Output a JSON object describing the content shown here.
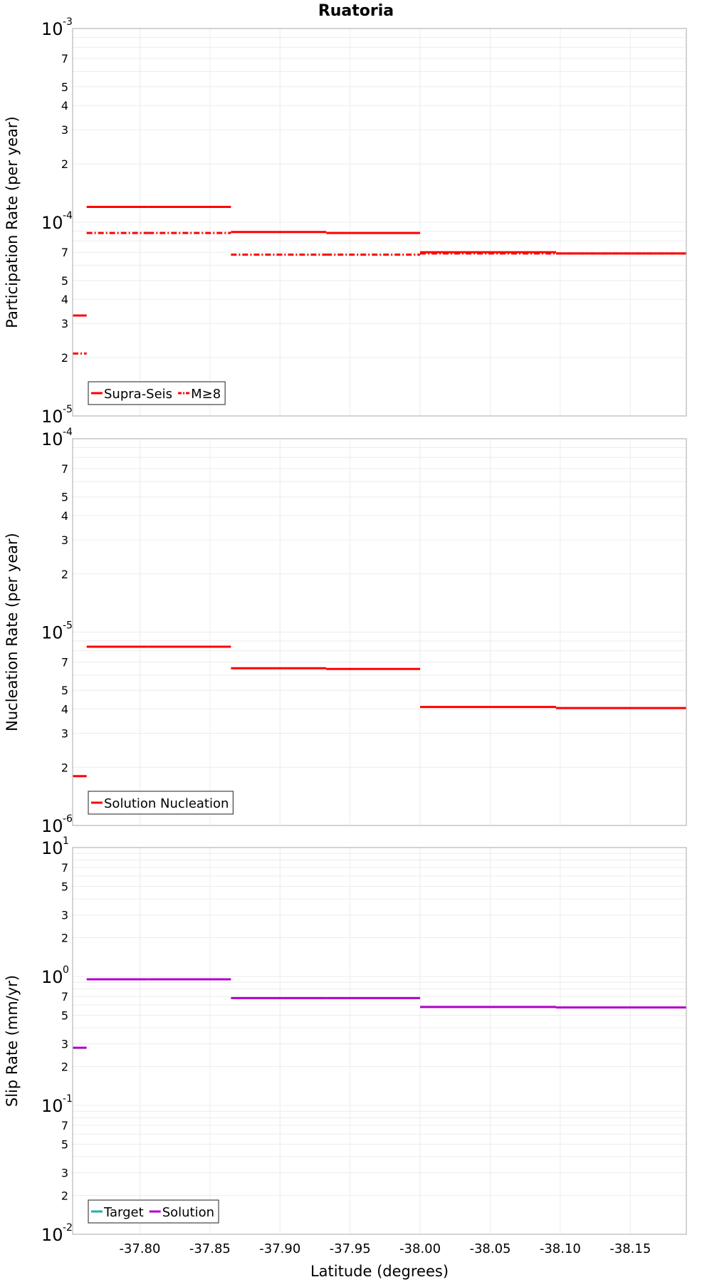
{
  "title": "Ruatoria",
  "xlabel": "Latitude (degrees)",
  "colors": {
    "supra": "#ff0000",
    "solution": "#b000c8",
    "target": "#20b0b0"
  },
  "chart_data": [
    {
      "type": "line",
      "id": "participation",
      "ylabel": "Participation Rate (per year)",
      "yscale": "log",
      "ylim_exp": [
        -5,
        -3
      ],
      "xlim": [
        -37.752,
        -38.19
      ],
      "xticks": [
        -37.8,
        -37.85,
        -37.9,
        -37.95,
        -38.0,
        -38.05,
        -38.1,
        -38.15
      ],
      "xtick_labels": [
        "-37.80",
        "-37.85",
        "-37.90",
        "-37.95",
        "-38.00",
        "-38.05",
        "-38.10",
        "-38.15"
      ],
      "legend": [
        "Supra-Seis",
        "M≥8"
      ],
      "series": [
        {
          "name": "Supra-Seis",
          "style": "solid",
          "color": "#ff0000",
          "segments": [
            {
              "x": [
                -37.752,
                -37.762
              ],
              "y": 3.3e-05
            },
            {
              "x": [
                -37.762,
                -37.806
              ],
              "y": 0.00012
            },
            {
              "x": [
                -37.806,
                -37.865
              ],
              "y": 0.00012
            },
            {
              "x": [
                -37.865,
                -37.933
              ],
              "y": 8.9e-05
            },
            {
              "x": [
                -37.933,
                -38.0
              ],
              "y": 8.8e-05
            },
            {
              "x": [
                -38.0,
                -38.097
              ],
              "y": 7e-05
            },
            {
              "x": [
                -38.097,
                -38.19
              ],
              "y": 6.9e-05
            }
          ]
        },
        {
          "name": "M≥8",
          "style": "dashdot",
          "color": "#ff0000",
          "segments": [
            {
              "x": [
                -37.752,
                -37.762
              ],
              "y": 2.1e-05
            },
            {
              "x": [
                -37.762,
                -37.806
              ],
              "y": 8.8e-05
            },
            {
              "x": [
                -37.806,
                -37.865
              ],
              "y": 8.8e-05
            },
            {
              "x": [
                -37.865,
                -37.933
              ],
              "y": 6.8e-05
            },
            {
              "x": [
                -37.933,
                -38.0
              ],
              "y": 6.8e-05
            },
            {
              "x": [
                -38.0,
                -38.097
              ],
              "y": 6.9e-05
            },
            {
              "x": [
                -38.097,
                -38.19
              ],
              "y": 6.9e-05
            }
          ]
        }
      ]
    },
    {
      "type": "line",
      "id": "nucleation",
      "ylabel": "Nucleation Rate (per year)",
      "yscale": "log",
      "ylim_exp": [
        -6,
        -4
      ],
      "xlim": [
        -37.752,
        -38.19
      ],
      "legend": [
        "Solution Nucleation"
      ],
      "series": [
        {
          "name": "Solution Nucleation",
          "style": "solid",
          "color": "#ff0000",
          "segments": [
            {
              "x": [
                -37.752,
                -37.762
              ],
              "y": 1.8e-06
            },
            {
              "x": [
                -37.762,
                -37.806
              ],
              "y": 8.4e-06
            },
            {
              "x": [
                -37.806,
                -37.865
              ],
              "y": 8.4e-06
            },
            {
              "x": [
                -37.865,
                -37.933
              ],
              "y": 6.5e-06
            },
            {
              "x": [
                -37.933,
                -38.0
              ],
              "y": 6.45e-06
            },
            {
              "x": [
                -38.0,
                -38.097
              ],
              "y": 4.1e-06
            },
            {
              "x": [
                -38.097,
                -38.19
              ],
              "y": 4.05e-06
            }
          ]
        }
      ]
    },
    {
      "type": "line",
      "id": "sliprate",
      "ylabel": "Slip Rate (mm/yr)",
      "yscale": "log",
      "ylim_exp": [
        -2,
        1
      ],
      "xlim": [
        -37.752,
        -38.19
      ],
      "legend": [
        "Target",
        "Solution"
      ],
      "series": [
        {
          "name": "Target",
          "style": "solid",
          "color": "#20b0b0",
          "segments": []
        },
        {
          "name": "Solution",
          "style": "solid",
          "color": "#b000c8",
          "segments": [
            {
              "x": [
                -37.752,
                -37.762
              ],
              "y": 0.28
            },
            {
              "x": [
                -37.762,
                -37.806
              ],
              "y": 0.95
            },
            {
              "x": [
                -37.806,
                -37.865
              ],
              "y": 0.95
            },
            {
              "x": [
                -37.865,
                -37.933
              ],
              "y": 0.68
            },
            {
              "x": [
                -37.933,
                -38.0
              ],
              "y": 0.68
            },
            {
              "x": [
                -38.0,
                -38.097
              ],
              "y": 0.58
            },
            {
              "x": [
                -38.097,
                -38.19
              ],
              "y": 0.575
            }
          ]
        }
      ]
    }
  ]
}
